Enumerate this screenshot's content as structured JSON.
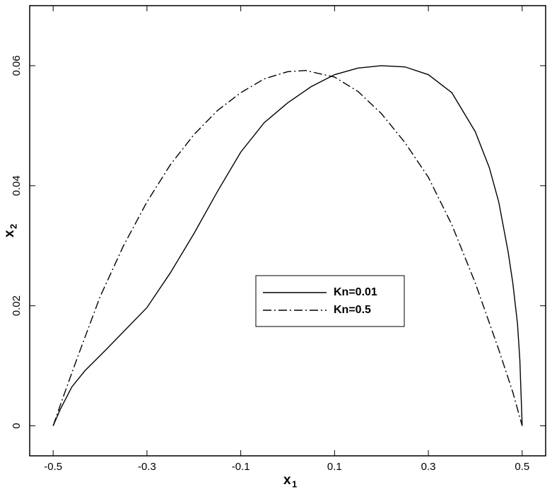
{
  "chart_data": {
    "type": "line",
    "xlabel": "x",
    "xlabel_sub": "1",
    "ylabel": "x",
    "ylabel_sub": "2",
    "xlim": [
      -0.55,
      0.55
    ],
    "ylim": [
      -0.005,
      0.07
    ],
    "xticks": [
      -0.5,
      -0.3,
      -0.1,
      0.1,
      0.3,
      0.5
    ],
    "yticks": [
      0,
      0.02,
      0.04,
      0.06
    ],
    "legend": "center-right",
    "series": [
      {
        "name": "Kn=0.01",
        "color": "#000000",
        "dash": "solid",
        "x": [
          -0.5,
          -0.485,
          -0.46,
          -0.432,
          -0.387,
          -0.3,
          -0.25,
          -0.2,
          -0.15,
          -0.1,
          -0.05,
          0,
          0.05,
          0.1,
          0.15,
          0.2,
          0.25,
          0.3,
          0.35,
          0.4,
          0.43,
          0.45,
          0.47,
          0.48,
          0.49,
          0.495,
          0.5
        ],
        "values": [
          0,
          0.0027,
          0.0065,
          0.0092,
          0.0127,
          0.0197,
          0.0255,
          0.032,
          0.039,
          0.0456,
          0.0505,
          0.0538,
          0.0565,
          0.0585,
          0.0596,
          0.06,
          0.0598,
          0.0585,
          0.0555,
          0.049,
          0.043,
          0.0373,
          0.029,
          0.0238,
          0.017,
          0.011,
          0
        ]
      },
      {
        "name": "Kn=0.5",
        "color": "#000000",
        "dash": "dashdot",
        "x": [
          -0.5,
          -0.48,
          -0.45,
          -0.4,
          -0.35,
          -0.3,
          -0.25,
          -0.2,
          -0.15,
          -0.1,
          -0.05,
          0,
          0.038,
          0.1,
          0.15,
          0.2,
          0.25,
          0.3,
          0.35,
          0.4,
          0.45,
          0.48,
          0.5
        ],
        "values": [
          0,
          0.0045,
          0.011,
          0.0215,
          0.03,
          0.0373,
          0.0435,
          0.0485,
          0.0525,
          0.0555,
          0.0578,
          0.059,
          0.0592,
          0.0581,
          0.0557,
          0.052,
          0.0472,
          0.0414,
          0.0335,
          0.0238,
          0.0127,
          0.0056,
          0
        ]
      }
    ]
  }
}
